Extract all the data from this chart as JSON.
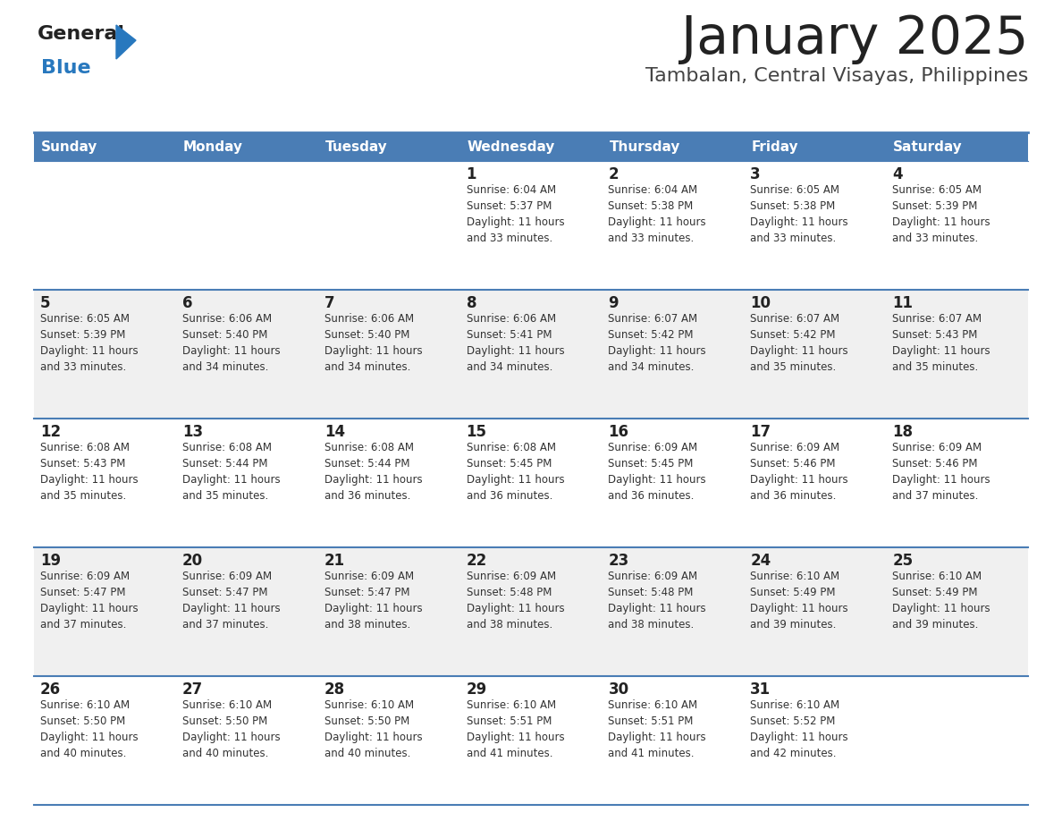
{
  "title": "January 2025",
  "subtitle": "Tambalan, Central Visayas, Philippines",
  "header_bg_color": "#4a7db5",
  "header_text_color": "#ffffff",
  "day_names": [
    "Sunday",
    "Monday",
    "Tuesday",
    "Wednesday",
    "Thursday",
    "Friday",
    "Saturday"
  ],
  "alt_row_bg": "#f0f0f0",
  "normal_row_bg": "#ffffff",
  "border_color": "#4a7db5",
  "date_text_color": "#222222",
  "info_text_color": "#333333",
  "title_color": "#222222",
  "subtitle_color": "#444444",
  "logo_general_color": "#222222",
  "logo_blue_color": "#2878be",
  "weeks": [
    {
      "days": [
        {
          "day": null,
          "info": null
        },
        {
          "day": null,
          "info": null
        },
        {
          "day": null,
          "info": null
        },
        {
          "day": 1,
          "info": "Sunrise: 6:04 AM\nSunset: 5:37 PM\nDaylight: 11 hours\nand 33 minutes."
        },
        {
          "day": 2,
          "info": "Sunrise: 6:04 AM\nSunset: 5:38 PM\nDaylight: 11 hours\nand 33 minutes."
        },
        {
          "day": 3,
          "info": "Sunrise: 6:05 AM\nSunset: 5:38 PM\nDaylight: 11 hours\nand 33 minutes."
        },
        {
          "day": 4,
          "info": "Sunrise: 6:05 AM\nSunset: 5:39 PM\nDaylight: 11 hours\nand 33 minutes."
        }
      ]
    },
    {
      "days": [
        {
          "day": 5,
          "info": "Sunrise: 6:05 AM\nSunset: 5:39 PM\nDaylight: 11 hours\nand 33 minutes."
        },
        {
          "day": 6,
          "info": "Sunrise: 6:06 AM\nSunset: 5:40 PM\nDaylight: 11 hours\nand 34 minutes."
        },
        {
          "day": 7,
          "info": "Sunrise: 6:06 AM\nSunset: 5:40 PM\nDaylight: 11 hours\nand 34 minutes."
        },
        {
          "day": 8,
          "info": "Sunrise: 6:06 AM\nSunset: 5:41 PM\nDaylight: 11 hours\nand 34 minutes."
        },
        {
          "day": 9,
          "info": "Sunrise: 6:07 AM\nSunset: 5:42 PM\nDaylight: 11 hours\nand 34 minutes."
        },
        {
          "day": 10,
          "info": "Sunrise: 6:07 AM\nSunset: 5:42 PM\nDaylight: 11 hours\nand 35 minutes."
        },
        {
          "day": 11,
          "info": "Sunrise: 6:07 AM\nSunset: 5:43 PM\nDaylight: 11 hours\nand 35 minutes."
        }
      ]
    },
    {
      "days": [
        {
          "day": 12,
          "info": "Sunrise: 6:08 AM\nSunset: 5:43 PM\nDaylight: 11 hours\nand 35 minutes."
        },
        {
          "day": 13,
          "info": "Sunrise: 6:08 AM\nSunset: 5:44 PM\nDaylight: 11 hours\nand 35 minutes."
        },
        {
          "day": 14,
          "info": "Sunrise: 6:08 AM\nSunset: 5:44 PM\nDaylight: 11 hours\nand 36 minutes."
        },
        {
          "day": 15,
          "info": "Sunrise: 6:08 AM\nSunset: 5:45 PM\nDaylight: 11 hours\nand 36 minutes."
        },
        {
          "day": 16,
          "info": "Sunrise: 6:09 AM\nSunset: 5:45 PM\nDaylight: 11 hours\nand 36 minutes."
        },
        {
          "day": 17,
          "info": "Sunrise: 6:09 AM\nSunset: 5:46 PM\nDaylight: 11 hours\nand 36 minutes."
        },
        {
          "day": 18,
          "info": "Sunrise: 6:09 AM\nSunset: 5:46 PM\nDaylight: 11 hours\nand 37 minutes."
        }
      ]
    },
    {
      "days": [
        {
          "day": 19,
          "info": "Sunrise: 6:09 AM\nSunset: 5:47 PM\nDaylight: 11 hours\nand 37 minutes."
        },
        {
          "day": 20,
          "info": "Sunrise: 6:09 AM\nSunset: 5:47 PM\nDaylight: 11 hours\nand 37 minutes."
        },
        {
          "day": 21,
          "info": "Sunrise: 6:09 AM\nSunset: 5:47 PM\nDaylight: 11 hours\nand 38 minutes."
        },
        {
          "day": 22,
          "info": "Sunrise: 6:09 AM\nSunset: 5:48 PM\nDaylight: 11 hours\nand 38 minutes."
        },
        {
          "day": 23,
          "info": "Sunrise: 6:09 AM\nSunset: 5:48 PM\nDaylight: 11 hours\nand 38 minutes."
        },
        {
          "day": 24,
          "info": "Sunrise: 6:10 AM\nSunset: 5:49 PM\nDaylight: 11 hours\nand 39 minutes."
        },
        {
          "day": 25,
          "info": "Sunrise: 6:10 AM\nSunset: 5:49 PM\nDaylight: 11 hours\nand 39 minutes."
        }
      ]
    },
    {
      "days": [
        {
          "day": 26,
          "info": "Sunrise: 6:10 AM\nSunset: 5:50 PM\nDaylight: 11 hours\nand 40 minutes."
        },
        {
          "day": 27,
          "info": "Sunrise: 6:10 AM\nSunset: 5:50 PM\nDaylight: 11 hours\nand 40 minutes."
        },
        {
          "day": 28,
          "info": "Sunrise: 6:10 AM\nSunset: 5:50 PM\nDaylight: 11 hours\nand 40 minutes."
        },
        {
          "day": 29,
          "info": "Sunrise: 6:10 AM\nSunset: 5:51 PM\nDaylight: 11 hours\nand 41 minutes."
        },
        {
          "day": 30,
          "info": "Sunrise: 6:10 AM\nSunset: 5:51 PM\nDaylight: 11 hours\nand 41 minutes."
        },
        {
          "day": 31,
          "info": "Sunrise: 6:10 AM\nSunset: 5:52 PM\nDaylight: 11 hours\nand 42 minutes."
        },
        {
          "day": null,
          "info": null
        }
      ]
    }
  ]
}
